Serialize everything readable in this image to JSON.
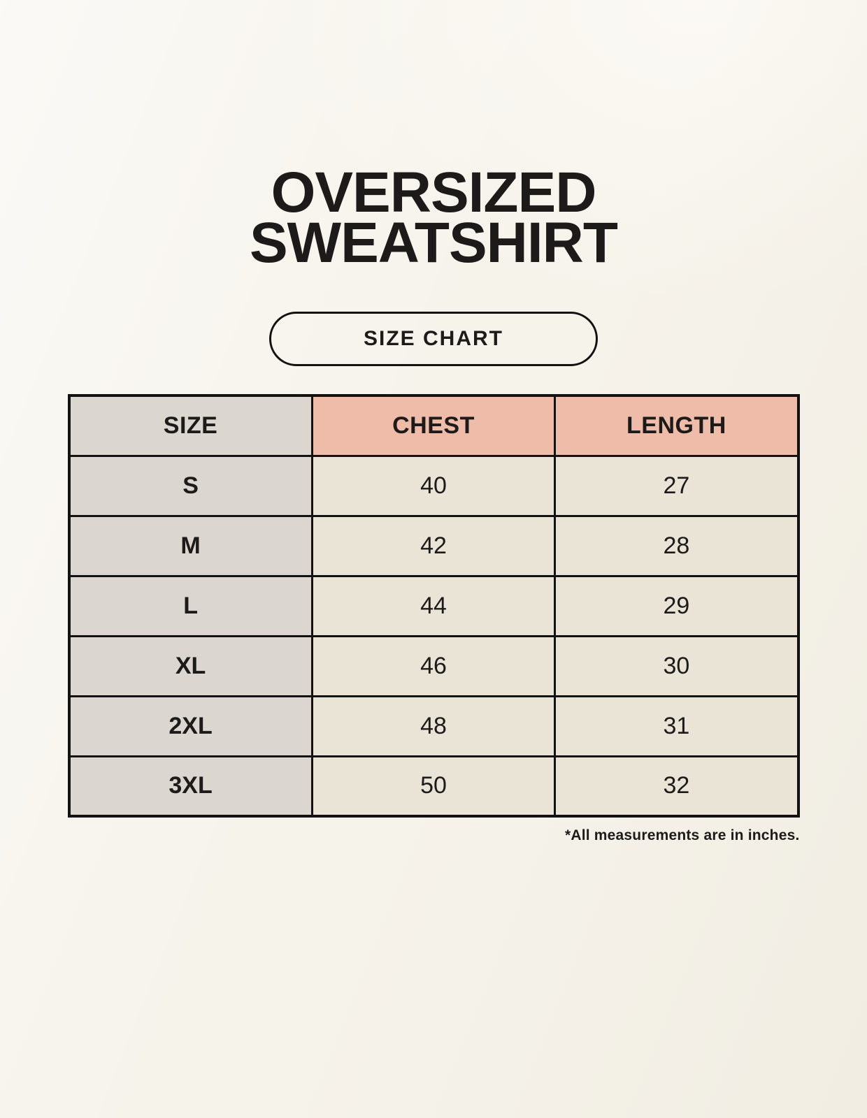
{
  "header": {
    "title_line1": "OVERSIZED",
    "title_line2": "SWEATSHIRT",
    "badge_label": "SIZE CHART"
  },
  "footnote": {
    "text": "*All measurements are in inches."
  },
  "chart_data": {
    "type": "table",
    "title": "OVERSIZED SWEATSHIRT",
    "columns": [
      "SIZE",
      "CHEST",
      "LENGTH"
    ],
    "rows": [
      {
        "size": "S",
        "chest": "40",
        "length": "27"
      },
      {
        "size": "M",
        "chest": "42",
        "length": "28"
      },
      {
        "size": "L",
        "chest": "44",
        "length": "29"
      },
      {
        "size": "XL",
        "chest": "46",
        "length": "30"
      },
      {
        "size": "2XL",
        "chest": "48",
        "length": "31"
      },
      {
        "size": "3XL",
        "chest": "50",
        "length": "32"
      }
    ],
    "units": "inches",
    "units_note": "*All measurements are in inches."
  },
  "colors": {
    "bg": "#f6f3eb",
    "ink": "#1c1b1a",
    "line": "#121212",
    "accent": "#eebca8",
    "shade": "#dcd6d0",
    "cell": "#eae4d7"
  }
}
